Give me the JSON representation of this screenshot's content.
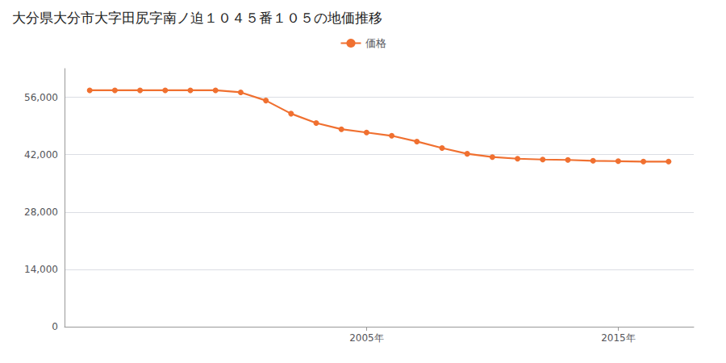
{
  "chart_data": {
    "type": "line",
    "title": "大分県大分市大字田尻字南ノ迫１０４５番１０５の地価推移",
    "x": [
      1994,
      1995,
      1996,
      1997,
      1998,
      1999,
      2000,
      2001,
      2002,
      2003,
      2004,
      2005,
      2006,
      2007,
      2008,
      2009,
      2010,
      2011,
      2012,
      2013,
      2014,
      2015,
      2016,
      2017
    ],
    "series": [
      {
        "name": "価格",
        "color": "#f07030",
        "values": [
          57700,
          57700,
          57700,
          57700,
          57700,
          57700,
          57200,
          55200,
          52000,
          49700,
          48200,
          47400,
          46600,
          45200,
          43600,
          42200,
          41400,
          41000,
          40800,
          40700,
          40500,
          40400,
          40300,
          40300
        ]
      }
    ],
    "xlim": [
      1993,
      2018
    ],
    "xticks": [
      {
        "value": 2005,
        "label": "2005年"
      },
      {
        "value": 2015,
        "label": "2015年"
      }
    ],
    "ylim": [
      0,
      63000
    ],
    "yticks": [
      0,
      {
        "value": 14000,
        "label": "14,000"
      },
      {
        "value": 28000,
        "label": "28,000"
      },
      {
        "value": 42000,
        "label": "42,000"
      },
      {
        "value": 56000,
        "label": "56,000"
      }
    ],
    "grid": true,
    "legend": "top",
    "marker": "circle"
  }
}
